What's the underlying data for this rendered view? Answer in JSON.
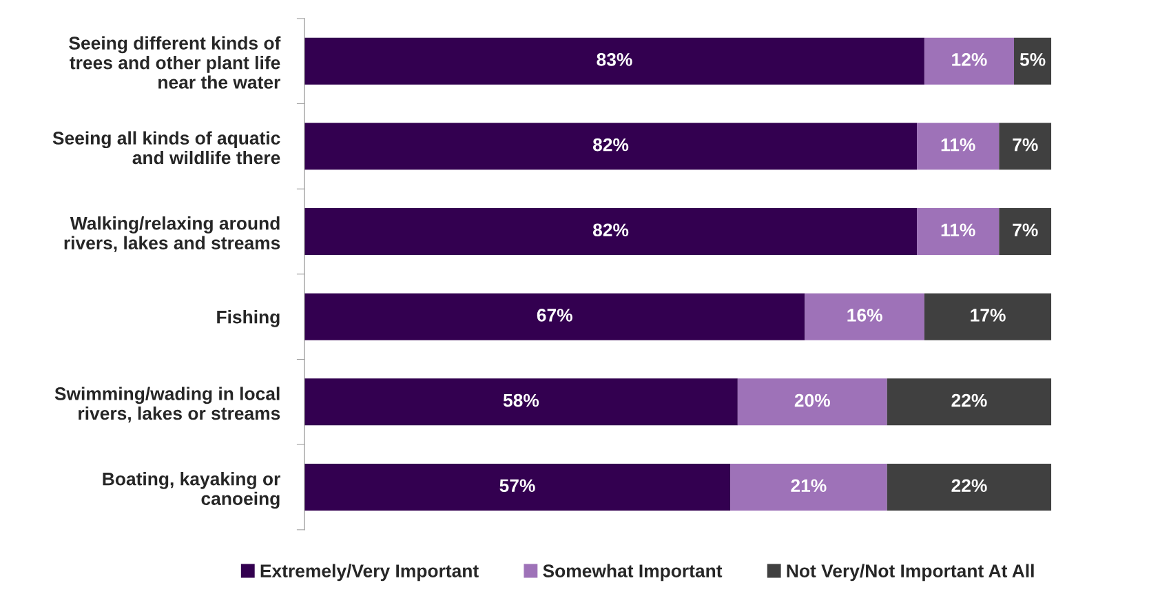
{
  "chart_data": {
    "type": "bar",
    "orientation": "horizontal",
    "stacked": true,
    "categories": [
      "Seeing different kinds of\ntrees and other plant life\nnear the water",
      "Seeing all kinds of aquatic\nand wildlife there",
      "Walking/relaxing around\nrivers, lakes and streams",
      "Fishing",
      "Swimming/wading in local\nrivers, lakes or streams",
      "Boating, kayaking or\ncanoeing"
    ],
    "series": [
      {
        "name": "Extremely/Very Important",
        "color": "#330050",
        "values": [
          83,
          82,
          82,
          67,
          58,
          57
        ],
        "value_labels": [
          "83%",
          "82%",
          "82%",
          "67%",
          "58%",
          "57%"
        ]
      },
      {
        "name": "Somewhat Important",
        "color": "#9e72b8",
        "values": [
          12,
          11,
          11,
          16,
          20,
          21
        ],
        "value_labels": [
          "12%",
          "11%",
          "11%",
          "16%",
          "20%",
          "21%"
        ]
      },
      {
        "name": "Not Very/Not Important At All",
        "color": "#404040",
        "values": [
          5,
          7,
          7,
          17,
          22,
          22
        ],
        "value_labels": [
          "5%",
          "7%",
          "7%",
          "17%",
          "22%",
          "22%"
        ]
      }
    ],
    "legend": "bottom",
    "grid": false
  }
}
